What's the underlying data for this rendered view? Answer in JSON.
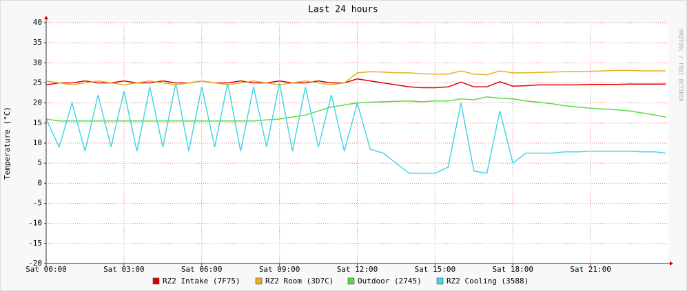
{
  "chart_data": {
    "type": "line",
    "title": "Last 24 hours",
    "y_label": "Temperature (°C)",
    "watermark": "RRDTOOL / TOBI OETIKER",
    "x": [
      0,
      0.5,
      1,
      1.5,
      2,
      2.5,
      3,
      3.5,
      4,
      4.5,
      5,
      5.5,
      6,
      6.5,
      7,
      7.5,
      8,
      8.5,
      9,
      9.5,
      10,
      10.5,
      11,
      11.5,
      12,
      12.5,
      13,
      13.5,
      14,
      14.5,
      15,
      15.5,
      16,
      16.5,
      17,
      17.5,
      18,
      18.5,
      19,
      19.5,
      20,
      20.5,
      21,
      21.5,
      22,
      22.5,
      23,
      23.5,
      23.9
    ],
    "xlim": [
      0,
      24
    ],
    "xticks": [
      {
        "value": 0,
        "label": "Sat 00:00"
      },
      {
        "value": 3,
        "label": "Sat 03:00"
      },
      {
        "value": 6,
        "label": "Sat 06:00"
      },
      {
        "value": 9,
        "label": "Sat 09:00"
      },
      {
        "value": 12,
        "label": "Sat 12:00"
      },
      {
        "value": 15,
        "label": "Sat 15:00"
      },
      {
        "value": 18,
        "label": "Sat 18:00"
      },
      {
        "value": 21,
        "label": "Sat 21:00"
      }
    ],
    "ylim": [
      -20,
      40
    ],
    "yticks": [
      -20,
      -15,
      -10,
      -5,
      0,
      5,
      10,
      15,
      20,
      25,
      30,
      35,
      40
    ],
    "grid": true,
    "series": [
      {
        "name": "RZ2 Intake (7F75)",
        "color": "#e00000",
        "values": [
          24.5,
          25,
          25,
          25.5,
          25,
          25,
          25.5,
          25,
          25,
          25.5,
          25,
          25,
          25.5,
          25,
          25,
          25.5,
          25,
          25,
          25.5,
          25,
          25,
          25.5,
          25,
          25,
          26,
          25.5,
          25,
          24.5,
          24,
          23.8,
          23.8,
          24,
          25.2,
          24,
          24,
          25.3,
          24.2,
          24.3,
          24.5,
          24.5,
          24.5,
          24.5,
          24.6,
          24.6,
          24.6,
          24.7,
          24.7,
          24.7,
          24.7
        ]
      },
      {
        "name": "RZ2 Room (3D7C)",
        "color": "#e6b020",
        "values": [
          25.5,
          25,
          24.5,
          25,
          25.5,
          25,
          24.5,
          25,
          25.5,
          25,
          24.5,
          25,
          25.5,
          25,
          24.5,
          25,
          25.5,
          25,
          24.5,
          25,
          25.5,
          25,
          24.5,
          25,
          27.5,
          27.8,
          27.7,
          27.5,
          27.5,
          27.3,
          27.2,
          27.2,
          28,
          27.2,
          27,
          28,
          27.5,
          27.5,
          27.6,
          27.7,
          27.8,
          27.8,
          27.9,
          28,
          28.1,
          28.1,
          28,
          28,
          28
        ]
      },
      {
        "name": "Outdoor (2745)",
        "color": "#55dd44",
        "values": [
          16,
          15.5,
          15.5,
          15.5,
          15.5,
          15.5,
          15.5,
          15.5,
          15.5,
          15.5,
          15.5,
          15.5,
          15.5,
          15.5,
          15.5,
          15.5,
          15.5,
          15.8,
          16,
          16.5,
          17,
          18,
          19,
          19.5,
          20,
          20.2,
          20.3,
          20.4,
          20.5,
          20.3,
          20.5,
          20.5,
          21,
          20.8,
          21.5,
          21.2,
          21,
          20.5,
          20.2,
          19.8,
          19.3,
          19,
          18.7,
          18.5,
          18.3,
          18,
          17.5,
          17,
          16.5
        ]
      },
      {
        "name": "RZ2 Cooling (3588)",
        "color": "#44d6e6",
        "values": [
          16,
          9,
          20,
          8,
          22,
          9,
          23,
          8,
          24,
          9,
          25,
          8,
          24,
          9,
          25,
          8,
          24,
          9,
          25,
          8,
          24,
          9,
          22,
          8,
          20,
          8.5,
          7.5,
          5,
          2.5,
          2.5,
          2.5,
          4,
          20,
          3,
          2.5,
          18,
          5,
          7.5,
          7.5,
          7.5,
          7.8,
          7.8,
          8,
          8,
          8,
          8,
          7.8,
          7.8,
          7.5
        ]
      }
    ]
  }
}
